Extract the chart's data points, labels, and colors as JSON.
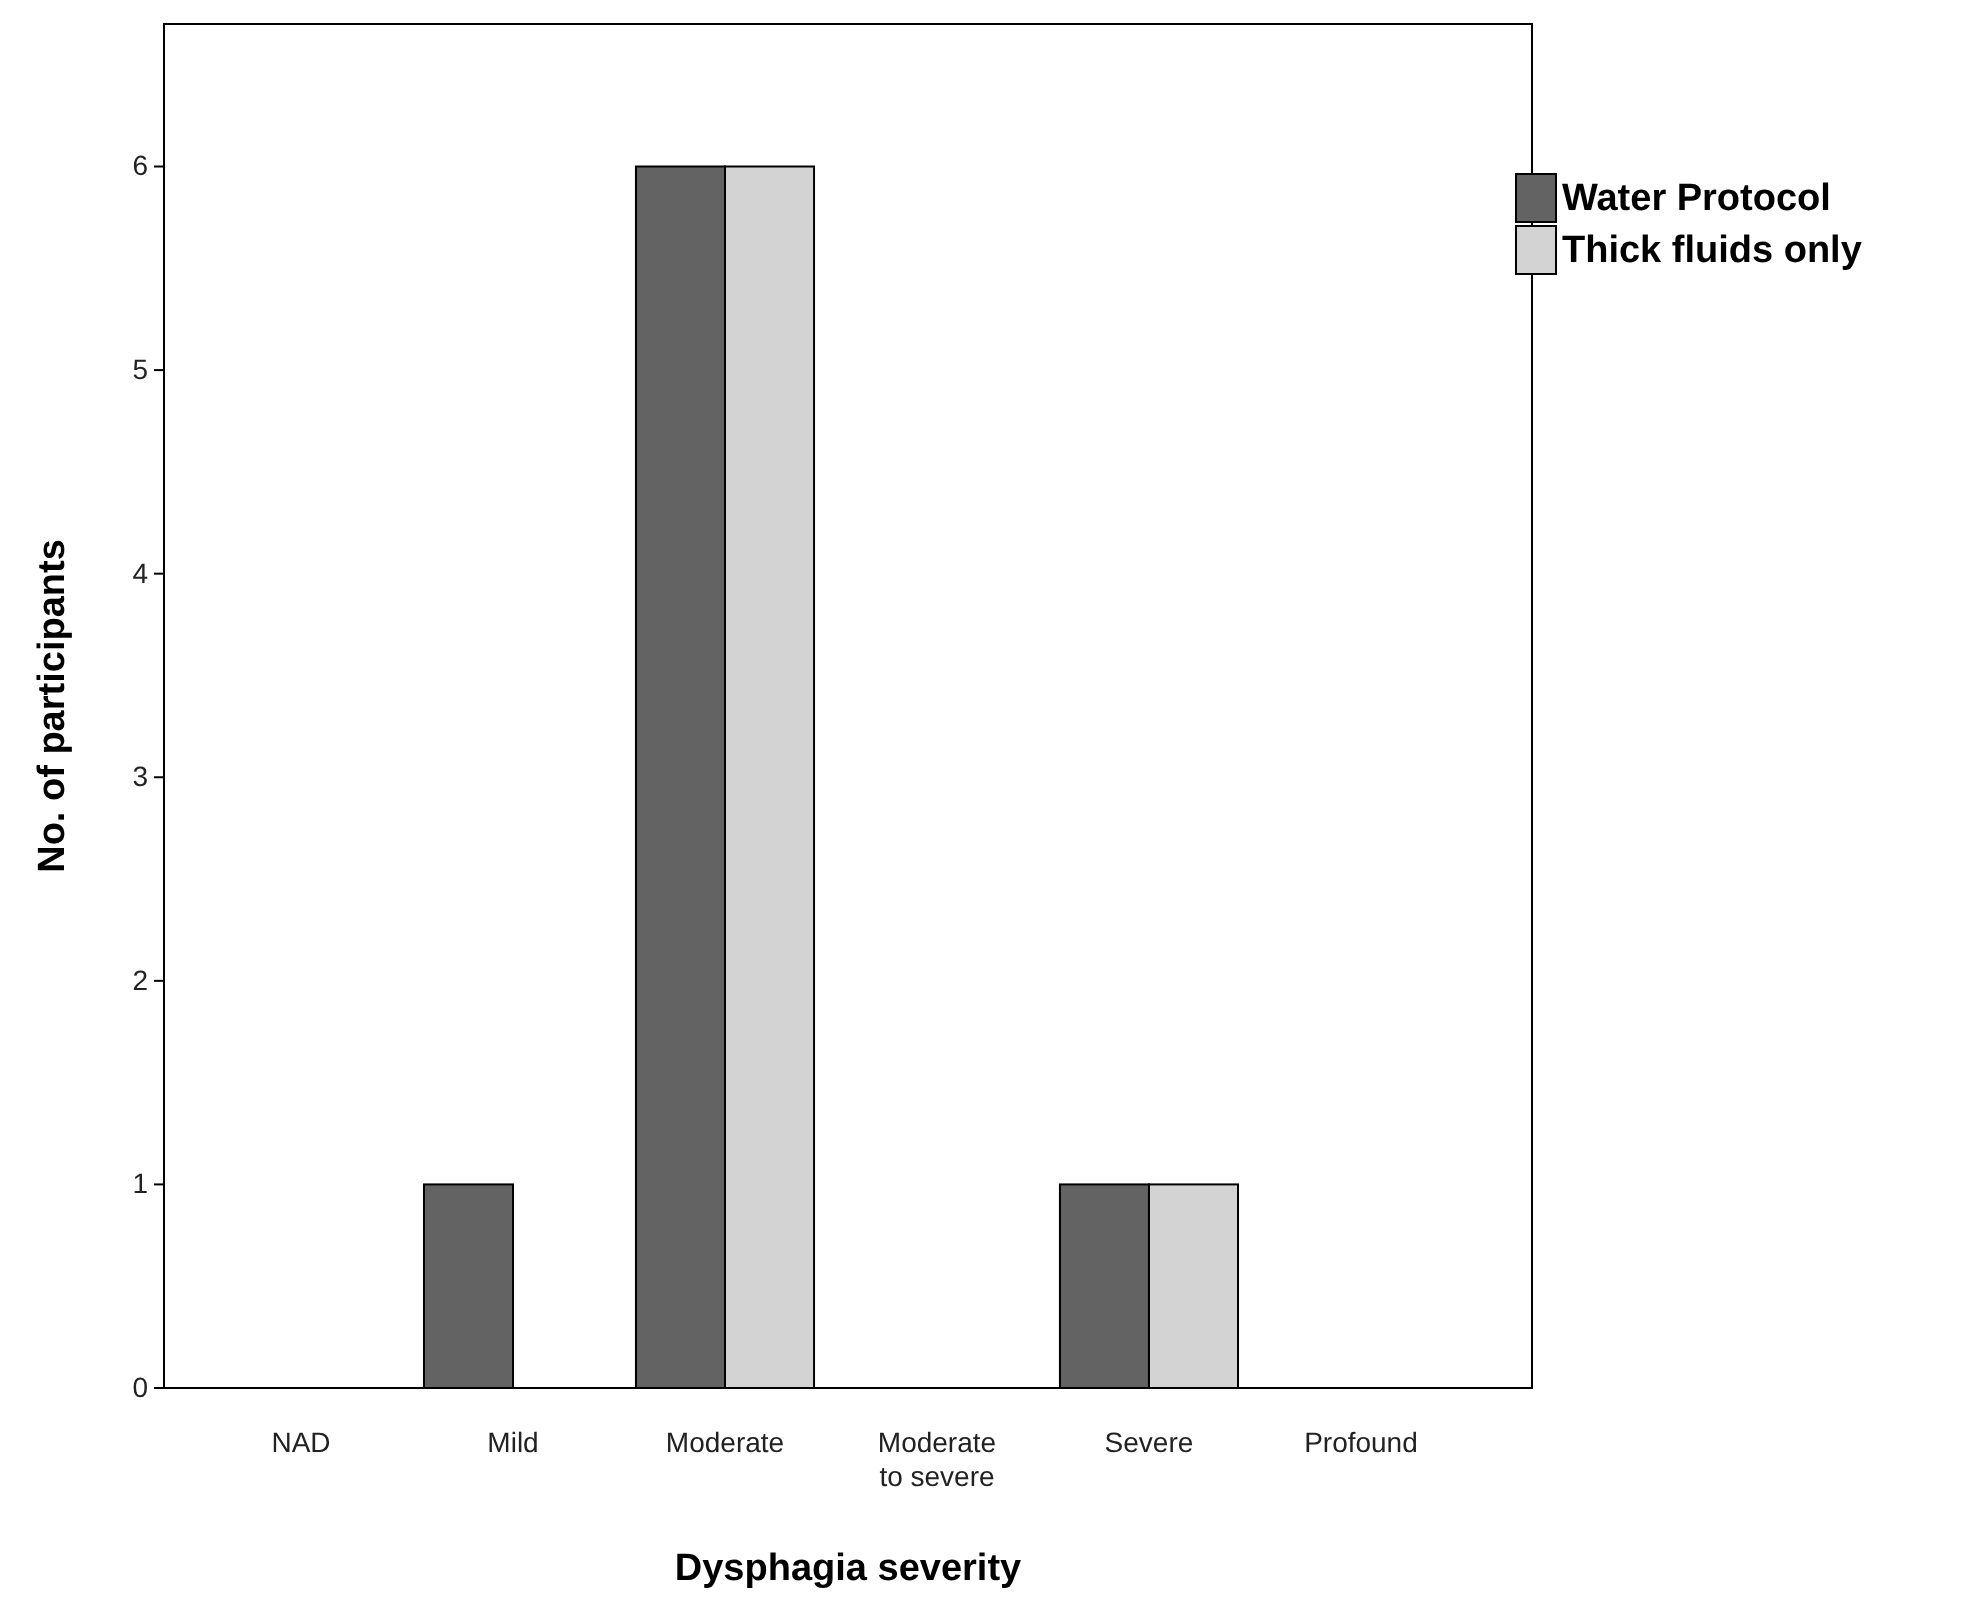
{
  "chart_data": {
    "type": "bar",
    "xlabel": "Dysphagia severity",
    "ylabel": "No. of participants",
    "categories": [
      "NAD",
      "Mild",
      "Moderate",
      "Moderate to severe",
      "Severe",
      "Profound"
    ],
    "series": [
      {
        "name": "Water Protocol",
        "color": "#636363",
        "values": [
          0,
          1,
          6,
          0,
          1,
          0
        ]
      },
      {
        "name": "Thick fluids only",
        "color": "#d3d3d3",
        "values": [
          0,
          0,
          6,
          0,
          1,
          0
        ]
      }
    ],
    "ylim": [
      0,
      6.7
    ],
    "yticks": [
      0,
      1,
      2,
      3,
      4,
      5,
      6
    ],
    "grid": false,
    "legend": "top right"
  }
}
